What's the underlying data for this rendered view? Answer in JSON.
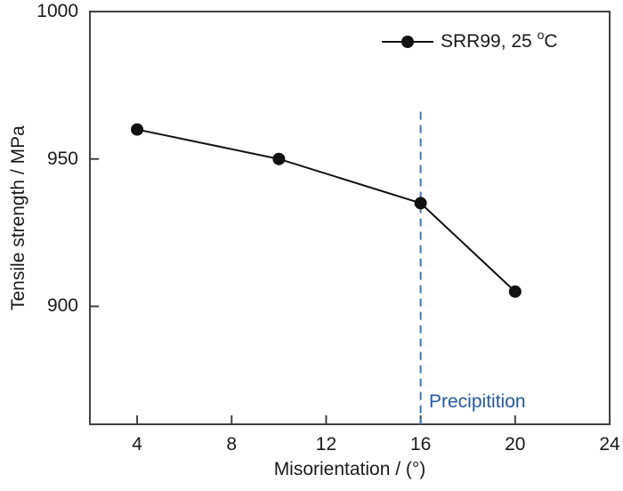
{
  "chart_data": {
    "type": "line",
    "title": "",
    "xlabel": "Misorientation / (°)",
    "ylabel": "Tensile strength / MPa",
    "xlim": [
      2,
      24
    ],
    "ylim": [
      860,
      1000
    ],
    "xticks": [
      4,
      8,
      12,
      16,
      20,
      24
    ],
    "yticks": [
      900,
      950,
      1000
    ],
    "grid": false,
    "legend_position": "top-right-inside",
    "series": [
      {
        "name": "SRR99, 25 °C",
        "label_parts": {
          "prefix": "SRR99, 25 ",
          "sup": "o",
          "suffix": "C"
        },
        "marker": "filled-circle",
        "color": "#111111",
        "x": [
          4,
          10,
          16,
          20
        ],
        "y": [
          960,
          950,
          935,
          905
        ]
      }
    ],
    "vline": {
      "x": 16,
      "y_top": 966,
      "style": "dashed",
      "color": "#4377b9"
    },
    "annotation": {
      "text": "Precipitition",
      "x": 16.4,
      "y": 866,
      "color": "#2457a5"
    }
  },
  "colors": {
    "axis": "#404040",
    "text": "#1a1a1a",
    "background": "#ffffff"
  }
}
